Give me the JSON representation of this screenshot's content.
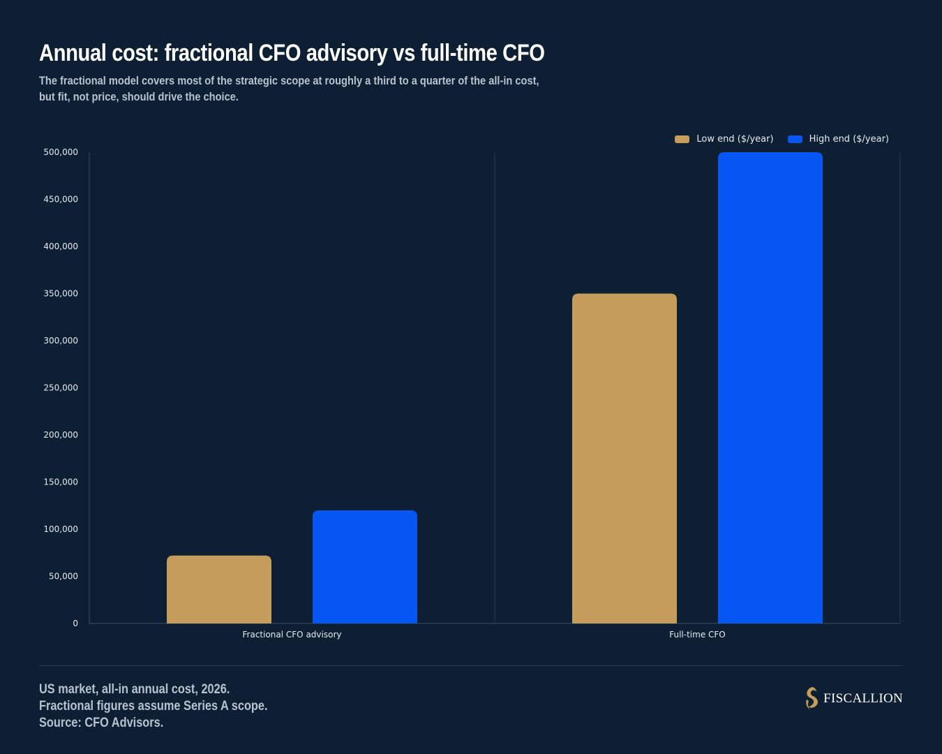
{
  "header": {
    "title": "Annual cost: fractional CFO advisory vs full-time CFO",
    "subtitle": "The fractional model covers most of the strategic scope at roughly a third to a quarter of the all-in cost, but fit, not price, should drive the choice."
  },
  "footer": {
    "note": "US market, all-in annual cost, 2026. Fractional figures assume Series A scope. Source: CFO Advisors.",
    "brand_name": "FISCALLION",
    "brand_icon": "horse-head-logo"
  },
  "colors": {
    "background": "#0d1f33",
    "low": "#c49d5c",
    "high": "#0656f2",
    "grid": "#26394d",
    "axis": "#3a4c60"
  },
  "chart_data": {
    "type": "bar",
    "categories": [
      "Fractional CFO advisory",
      "Full-time CFO"
    ],
    "series": [
      {
        "name": "Low end ($/year)",
        "values": [
          72000,
          350000
        ],
        "color": "#c49d5c"
      },
      {
        "name": "High end ($/year)",
        "values": [
          120000,
          500000
        ],
        "color": "#0656f2"
      }
    ],
    "ylim": [
      0,
      500000
    ],
    "yticks": [
      0,
      50000,
      100000,
      150000,
      200000,
      250000,
      300000,
      350000,
      400000,
      450000,
      500000
    ],
    "ytick_labels": [
      "0",
      "50,000",
      "100,000",
      "150,000",
      "200,000",
      "250,000",
      "300,000",
      "350,000",
      "400,000",
      "450,000",
      "500,000"
    ],
    "xlabel": "",
    "ylabel": "",
    "legend_position": "top-right",
    "grid": "vertical separators between categories"
  }
}
